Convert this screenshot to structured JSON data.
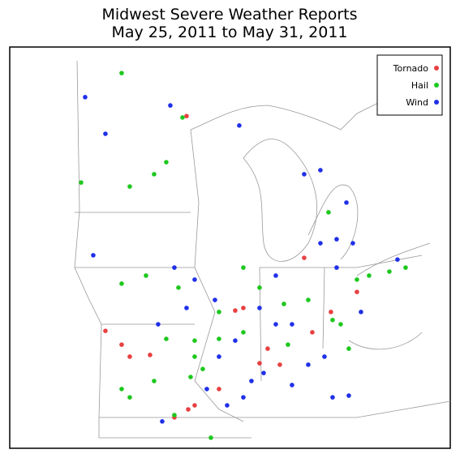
{
  "title": [
    "Midwest Severe Weather Reports",
    "May 25, 2011 to May 31, 2011"
  ],
  "series": [
    {
      "name": "Tornado",
      "color": "#e84040",
      "points": [
        [
          -91.09,
          47.39
        ],
        [
          -89.05,
          40.6
        ],
        [
          -88.71,
          40.69
        ],
        [
          -86.16,
          42.44
        ],
        [
          -94.49,
          39.89
        ],
        [
          -93.47,
          38.99
        ],
        [
          -92.62,
          39.05
        ],
        [
          -90.75,
          37.29
        ],
        [
          -91.02,
          37.15
        ],
        [
          -89.73,
          37.86
        ],
        [
          -87.69,
          39.27
        ],
        [
          -87.18,
          38.71
        ],
        [
          -85.82,
          39.84
        ],
        [
          -85.04,
          40.55
        ],
        [
          -83.95,
          41.25
        ],
        [
          -93.81,
          39.41
        ],
        [
          -91.6,
          36.87
        ],
        [
          -88.03,
          38.76
        ]
      ]
    },
    {
      "name": "Hail",
      "color": "#1ec81e",
      "points": [
        [
          -93.81,
          48.89
        ],
        [
          -91.26,
          47.34
        ],
        [
          -91.94,
          45.78
        ],
        [
          -92.45,
          45.36
        ],
        [
          -93.47,
          44.93
        ],
        [
          -95.51,
          45.07
        ],
        [
          -85.14,
          44.03
        ],
        [
          -83.44,
          41.82
        ],
        [
          -82.59,
          41.96
        ],
        [
          -81.91,
          42.1
        ],
        [
          -83.95,
          41.68
        ],
        [
          -84.97,
          40.27
        ],
        [
          -84.63,
          40.12
        ],
        [
          -85.99,
          40.97
        ],
        [
          -87.01,
          40.83
        ],
        [
          -90.75,
          39.55
        ],
        [
          -89.73,
          39.61
        ],
        [
          -88.71,
          39.84
        ],
        [
          -86.84,
          39.41
        ],
        [
          -90.75,
          38.99
        ],
        [
          -90.92,
          38.28
        ],
        [
          -90.41,
          38.56
        ],
        [
          -93.81,
          37.86
        ],
        [
          -93.47,
          37.57
        ],
        [
          -92.45,
          38.14
        ],
        [
          -91.6,
          36.95
        ],
        [
          -90.07,
          36.16
        ],
        [
          -92.79,
          41.82
        ],
        [
          -93.81,
          41.54
        ],
        [
          -88.71,
          42.1
        ],
        [
          -89.73,
          40.55
        ],
        [
          -88.03,
          41.4
        ],
        [
          -84.29,
          39.27
        ],
        [
          -91.43,
          41.4
        ],
        [
          -91.94,
          39.61
        ]
      ]
    },
    {
      "name": "Wind",
      "color": "#2030e8",
      "points": [
        [
          -95.34,
          48.05
        ],
        [
          -94.49,
          46.77
        ],
        [
          -95.0,
          42.53
        ],
        [
          -91.77,
          47.76
        ],
        [
          -88.88,
          47.06
        ],
        [
          -86.16,
          45.36
        ],
        [
          -85.48,
          45.5
        ],
        [
          -84.39,
          44.37
        ],
        [
          -84.8,
          43.09
        ],
        [
          -85.48,
          42.95
        ],
        [
          -84.8,
          42.1
        ],
        [
          -82.25,
          42.38
        ],
        [
          -91.6,
          42.1
        ],
        [
          -90.75,
          41.68
        ],
        [
          -89.9,
          40.97
        ],
        [
          -88.03,
          40.69
        ],
        [
          -87.35,
          40.12
        ],
        [
          -89.05,
          39.55
        ],
        [
          -87.86,
          38.42
        ],
        [
          -88.71,
          37.57
        ],
        [
          -89.39,
          37.29
        ],
        [
          -86.67,
          38.0
        ],
        [
          -85.99,
          38.71
        ],
        [
          -84.97,
          37.57
        ],
        [
          -84.29,
          37.63
        ],
        [
          -92.11,
          36.73
        ],
        [
          -90.24,
          37.86
        ],
        [
          -89.73,
          38.99
        ],
        [
          -83.78,
          40.55
        ],
        [
          -85.31,
          38.99
        ],
        [
          -86.67,
          40.12
        ],
        [
          -88.37,
          38.14
        ],
        [
          -91.09,
          40.69
        ],
        [
          -92.28,
          40.12
        ],
        [
          -87.35,
          41.82
        ],
        [
          -84.12,
          42.95
        ]
      ]
    }
  ]
}
